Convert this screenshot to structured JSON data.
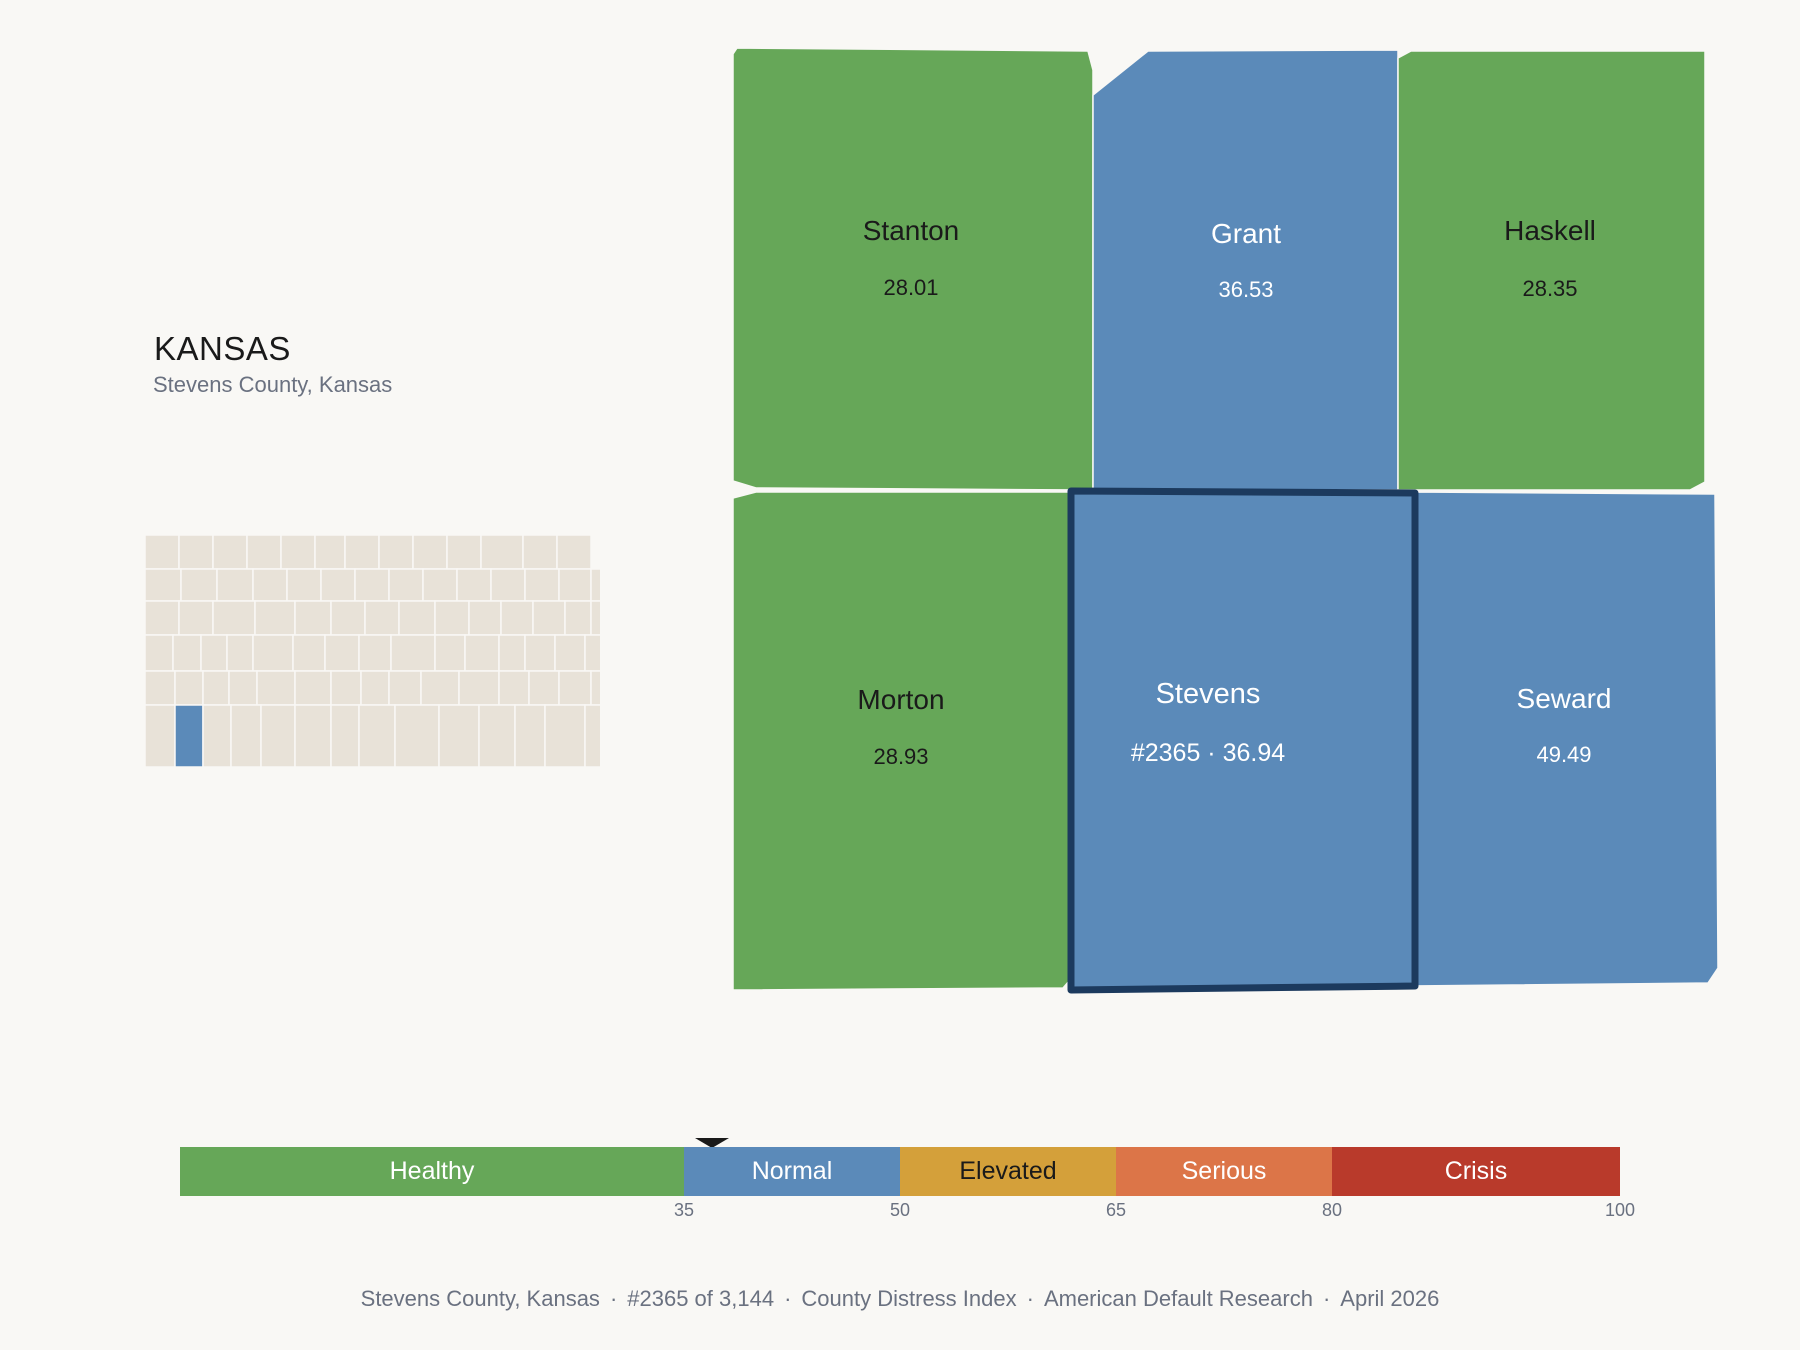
{
  "header": {
    "state_title": "KANSAS",
    "subtitle": "Stevens County, Kansas"
  },
  "locator_map": {
    "fill": "#e8e2d8",
    "highlight_fill": "#5b8ab9"
  },
  "neighbors": [
    {
      "id": "stanton",
      "name": "Stanton",
      "value": "28.01",
      "band": "Healthy",
      "color": "#66a758",
      "text_color": "#1a1a1a"
    },
    {
      "id": "grant",
      "name": "Grant",
      "value": "36.53",
      "band": "Normal",
      "color": "#5b8ab9",
      "text_color": "#ffffff"
    },
    {
      "id": "haskell",
      "name": "Haskell",
      "value": "28.35",
      "band": "Healthy",
      "color": "#66a758",
      "text_color": "#1a1a1a"
    },
    {
      "id": "morton",
      "name": "Morton",
      "value": "28.93",
      "band": "Healthy",
      "color": "#66a758",
      "text_color": "#1a1a1a"
    },
    {
      "id": "stevens",
      "name": "Stevens",
      "value": "#2365 · 36.94",
      "band": "Normal",
      "color": "#5b8ab9",
      "text_color": "#ffffff",
      "selected": true,
      "outline_color": "#1c3a5e"
    },
    {
      "id": "seward",
      "name": "Seward",
      "value": "49.49",
      "band": "Normal",
      "color": "#5b8ab9",
      "text_color": "#ffffff"
    }
  ],
  "scale": {
    "segments": [
      {
        "label": "Healthy",
        "from": 0,
        "to": 35,
        "color": "#66a758",
        "text_color": "#ffffff"
      },
      {
        "label": "Normal",
        "from": 35,
        "to": 50,
        "color": "#5b8ab9",
        "text_color": "#ffffff"
      },
      {
        "label": "Elevated",
        "from": 50,
        "to": 65,
        "color": "#d4a03a",
        "text_color": "#1a1a1a"
      },
      {
        "label": "Serious",
        "from": 65,
        "to": 80,
        "color": "#dc7548",
        "text_color": "#ffffff"
      },
      {
        "label": "Crisis",
        "from": 80,
        "to": 100,
        "color": "#b93a2b",
        "text_color": "#ffffff"
      }
    ],
    "ticks": [
      "35",
      "50",
      "65",
      "80",
      "100"
    ],
    "marker_value": 36.94
  },
  "footer": {
    "place": "Stevens County, Kansas",
    "rank": "#2365 of 3,144",
    "index": "County Distress Index",
    "source": "American Default Research",
    "date": "April 2026",
    "separator": "·"
  }
}
